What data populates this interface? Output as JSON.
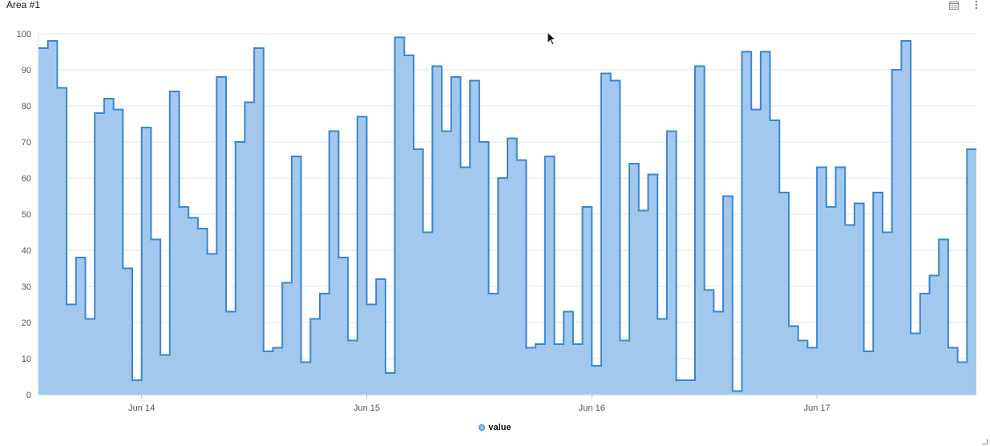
{
  "widget": {
    "title": "Area #1",
    "icons": [
      "calendar-icon",
      "more-vertical-icon"
    ]
  },
  "chart_data": {
    "type": "area",
    "interpolation": "step",
    "ylim": [
      0,
      100
    ],
    "yticks": [
      "0",
      "10",
      "20",
      "30",
      "40",
      "50",
      "60",
      "70",
      "80",
      "90",
      "100"
    ],
    "xlim": [
      "2024-06-13 13:00",
      "2024-06-17 17:00"
    ],
    "xticks": [
      {
        "label": "Jun 14",
        "at": "2024-06-14 00:00"
      },
      {
        "label": "Jun 15",
        "at": "2024-06-15 00:00"
      },
      {
        "label": "Jun 16",
        "at": "2024-06-16 00:00"
      },
      {
        "label": "Jun 17",
        "at": "2024-06-17 00:00"
      }
    ],
    "grid": true,
    "legend_position": "bottom-center",
    "series": [
      {
        "name": "value",
        "color": "#3a86d1",
        "fill": "#a3c8ee",
        "values": [
          96,
          98,
          85,
          25,
          38,
          21,
          78,
          82,
          79,
          35,
          4,
          74,
          43,
          11,
          84,
          52,
          49,
          46,
          39,
          88,
          23,
          70,
          81,
          96,
          12,
          13,
          31,
          66,
          9,
          21,
          28,
          73,
          38,
          15,
          77,
          25,
          32,
          6,
          99,
          94,
          68,
          45,
          91,
          73,
          88,
          63,
          87,
          70,
          28,
          60,
          71,
          65,
          13,
          14,
          66,
          14,
          23,
          14,
          52,
          8,
          89,
          87,
          15,
          64,
          51,
          61,
          21,
          73,
          4,
          4,
          91,
          29,
          23,
          55,
          1,
          95,
          79,
          95,
          76,
          56,
          19,
          15,
          13,
          63,
          52,
          63,
          47,
          53,
          12,
          56,
          45,
          90,
          98,
          17,
          28,
          33,
          43,
          13,
          9,
          68
        ]
      }
    ]
  }
}
